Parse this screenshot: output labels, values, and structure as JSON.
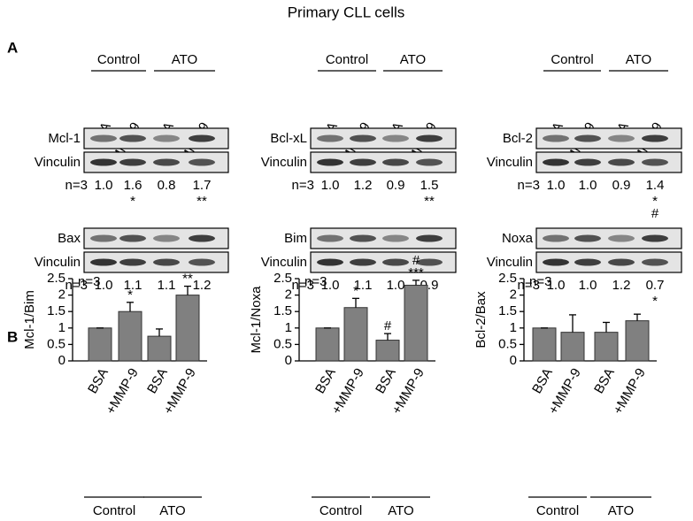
{
  "header": {
    "title": "Primary CLL cells"
  },
  "panel_labels": [
    "A",
    "B"
  ],
  "group_labels": [
    "Control",
    "ATO"
  ],
  "lane_labels": [
    "BSA",
    "+MMP-9",
    "BSA",
    "+MMP-9"
  ],
  "blots": [
    {
      "protein": "Mcl-1",
      "loading": "Vinculin",
      "n": "n=3",
      "values": [
        1.0,
        1.6,
        0.8,
        1.7
      ],
      "value_labels": [
        "1.0",
        "1.6",
        "0.8",
        "1.7"
      ],
      "significance": [
        null,
        [
          "*"
        ],
        null,
        [
          "**"
        ]
      ]
    },
    {
      "protein": "Bcl-xL",
      "loading": "Vinculin",
      "n": "n=3",
      "values": [
        1.0,
        1.2,
        0.9,
        1.5
      ],
      "value_labels": [
        "1.0",
        "1.2",
        "0.9",
        "1.5"
      ],
      "significance": [
        null,
        null,
        null,
        [
          "**"
        ]
      ]
    },
    {
      "protein": "Bcl-2",
      "loading": "Vinculin",
      "n": "n=3",
      "values": [
        1.0,
        1.0,
        0.9,
        1.4
      ],
      "value_labels": [
        "1.0",
        "1.0",
        "0.9",
        "1.4"
      ],
      "significance": [
        null,
        null,
        null,
        [
          "*",
          "#"
        ]
      ]
    },
    {
      "protein": "Bax",
      "loading": "Vinculin",
      "n": "n=3",
      "values": [
        1.0,
        1.1,
        1.1,
        1.2
      ],
      "value_labels": [
        "1.0",
        "1.1",
        "1.1",
        "1.2"
      ]
    },
    {
      "protein": "Bim",
      "loading": "Vinculin",
      "n": "n=3",
      "values": [
        1.0,
        1.1,
        1.0,
        0.9
      ],
      "value_labels": [
        "1.0",
        "1.1",
        "1.0",
        "0.9"
      ]
    },
    {
      "protein": "Noxa",
      "loading": "Vinculin",
      "n": "n=3",
      "values": [
        1.0,
        1.0,
        1.2,
        0.7
      ],
      "value_labels": [
        "1.0",
        "1.0",
        "1.2",
        "0.7"
      ],
      "significance": [
        null,
        null,
        null,
        [
          "*"
        ]
      ]
    }
  ],
  "chart_data": [
    {
      "type": "bar",
      "y_label": "Mcl-1/Bim",
      "annotation": "n=3",
      "categories": [
        "BSA",
        "+MMP-9",
        "BSA",
        "+MMP-9"
      ],
      "groups": [
        "Control",
        "ATO"
      ],
      "values": [
        1.0,
        1.5,
        0.75,
        2.0
      ],
      "errors": [
        0,
        0.28,
        0.22,
        0.27
      ],
      "significance": [
        null,
        [
          "*"
        ],
        null,
        [
          "**"
        ]
      ],
      "color": "#808080",
      "ylim": [
        0,
        2.5
      ],
      "yticks": [
        0,
        0.5,
        1,
        1.5,
        2,
        2.5
      ]
    },
    {
      "type": "bar",
      "y_label": "Mcl-1/Noxa",
      "annotation": "n=3",
      "categories": [
        "BSA",
        "+MMP-9",
        "BSA",
        "+MMP-9"
      ],
      "groups": [
        "Control",
        "ATO"
      ],
      "values": [
        1.0,
        1.62,
        0.63,
        2.3
      ],
      "errors": [
        0,
        0.28,
        0.2,
        0.15
      ],
      "significance": [
        null,
        [
          "*"
        ],
        [
          "#"
        ],
        [
          "#",
          "***"
        ]
      ],
      "color": "#808080",
      "ylim": [
        0,
        2.5
      ],
      "yticks": [
        0,
        0.5,
        1,
        1.5,
        2,
        2.5
      ]
    },
    {
      "type": "bar",
      "y_label": "Bcl-2/Bax",
      "annotation": "n=3",
      "categories": [
        "BSA",
        "+MMP-9",
        "BSA",
        "+MMP-9"
      ],
      "groups": [
        "Control",
        "ATO"
      ],
      "values": [
        1.0,
        0.87,
        0.87,
        1.22
      ],
      "errors": [
        0,
        0.53,
        0.3,
        0.2
      ],
      "color": "#808080",
      "ylim": [
        0,
        2.5
      ],
      "yticks": [
        0,
        0.5,
        1,
        1.5,
        2,
        2.5
      ]
    }
  ]
}
